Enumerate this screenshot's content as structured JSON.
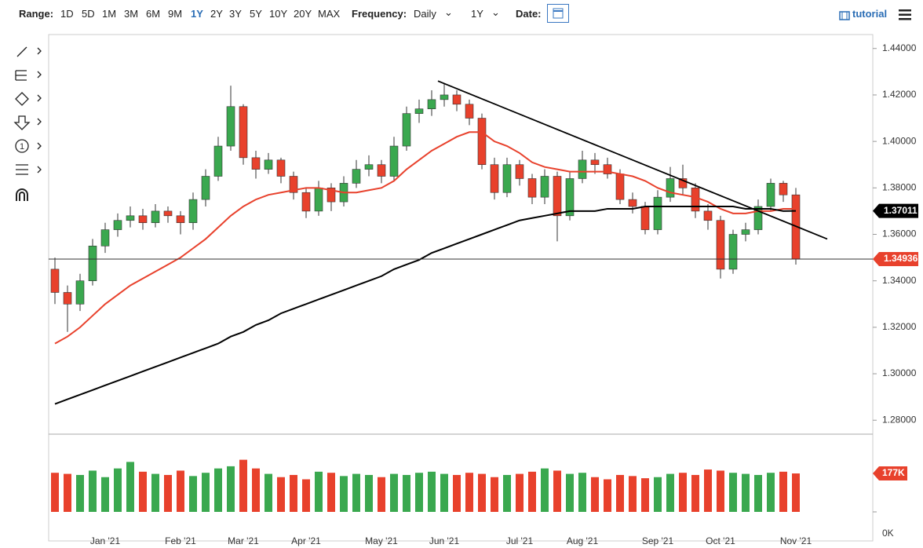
{
  "toolbar": {
    "range_label": "Range:",
    "ranges": [
      "1D",
      "5D",
      "1M",
      "3M",
      "6M",
      "9M",
      "1Y",
      "2Y",
      "3Y",
      "5Y",
      "10Y",
      "20Y",
      "MAX"
    ],
    "active_range": "1Y",
    "frequency_label": "Frequency:",
    "frequency": "Daily",
    "period": "1Y",
    "date_label": "Date:",
    "tutorial": "tutorial"
  },
  "chart_data": {
    "type": "candlestick",
    "categories": [
      null,
      null,
      null,
      null,
      "Jan '21",
      null,
      null,
      null,
      null,
      null,
      "Feb '21",
      null,
      null,
      null,
      null,
      "Mar '21",
      null,
      null,
      null,
      null,
      "Apr '21",
      null,
      null,
      null,
      null,
      null,
      "May '21",
      null,
      null,
      null,
      null,
      "Jun '21",
      null,
      null,
      null,
      null,
      null,
      "Jul '21",
      null,
      null,
      null,
      null,
      "Aug '21",
      null,
      null,
      null,
      null,
      null,
      "Sep '21",
      null,
      null,
      null,
      null,
      "Oct '21",
      null,
      null,
      null,
      null,
      null,
      "Nov '21"
    ],
    "open": [
      1.345,
      1.335,
      1.33,
      1.34,
      1.355,
      1.362,
      1.366,
      1.368,
      1.365,
      1.37,
      1.368,
      1.365,
      1.375,
      1.385,
      1.398,
      1.415,
      1.393,
      1.388,
      1.392,
      1.385,
      1.378,
      1.37,
      1.38,
      1.374,
      1.382,
      1.388,
      1.39,
      1.385,
      1.398,
      1.412,
      1.414,
      1.418,
      1.42,
      1.416,
      1.41,
      1.39,
      1.378,
      1.39,
      1.384,
      1.376,
      1.385,
      1.368,
      1.384,
      1.392,
      1.39,
      1.386,
      1.375,
      1.372,
      1.362,
      1.376,
      1.384,
      1.38,
      1.37,
      1.366,
      1.345,
      1.36,
      1.362,
      1.372,
      1.382,
      1.377
    ],
    "high": [
      1.35,
      1.338,
      1.343,
      1.358,
      1.365,
      1.369,
      1.372,
      1.371,
      1.373,
      1.372,
      1.37,
      1.378,
      1.388,
      1.402,
      1.424,
      1.416,
      1.396,
      1.395,
      1.393,
      1.387,
      1.38,
      1.383,
      1.382,
      1.385,
      1.392,
      1.394,
      1.392,
      1.402,
      1.415,
      1.418,
      1.422,
      1.425,
      1.422,
      1.418,
      1.412,
      1.393,
      1.393,
      1.392,
      1.386,
      1.388,
      1.387,
      1.387,
      1.396,
      1.395,
      1.393,
      1.388,
      1.378,
      1.374,
      1.379,
      1.389,
      1.39,
      1.382,
      1.373,
      1.368,
      1.362,
      1.365,
      1.375,
      1.384,
      1.383,
      1.38
    ],
    "low": [
      1.33,
      1.318,
      1.327,
      1.338,
      1.352,
      1.359,
      1.363,
      1.362,
      1.363,
      1.365,
      1.36,
      1.362,
      1.372,
      1.383,
      1.396,
      1.39,
      1.384,
      1.386,
      1.382,
      1.375,
      1.367,
      1.368,
      1.37,
      1.372,
      1.38,
      1.385,
      1.382,
      1.383,
      1.396,
      1.408,
      1.411,
      1.415,
      1.413,
      1.407,
      1.388,
      1.375,
      1.376,
      1.381,
      1.373,
      1.373,
      1.357,
      1.366,
      1.382,
      1.386,
      1.384,
      1.373,
      1.369,
      1.36,
      1.36,
      1.374,
      1.377,
      1.367,
      1.362,
      1.341,
      1.343,
      1.357,
      1.36,
      1.37,
      1.374,
      1.347
    ],
    "close": [
      1.335,
      1.33,
      1.34,
      1.355,
      1.362,
      1.366,
      1.368,
      1.365,
      1.37,
      1.368,
      1.365,
      1.375,
      1.385,
      1.398,
      1.415,
      1.393,
      1.388,
      1.392,
      1.385,
      1.378,
      1.37,
      1.38,
      1.374,
      1.382,
      1.388,
      1.39,
      1.385,
      1.398,
      1.412,
      1.414,
      1.418,
      1.42,
      1.416,
      1.41,
      1.39,
      1.378,
      1.39,
      1.384,
      1.376,
      1.385,
      1.368,
      1.384,
      1.392,
      1.39,
      1.386,
      1.375,
      1.372,
      1.362,
      1.376,
      1.384,
      1.38,
      1.37,
      1.366,
      1.345,
      1.36,
      1.362,
      1.372,
      1.382,
      1.377,
      1.34936
    ],
    "up_color": "#3aa84f",
    "down_color": "#e8412c",
    "moving_averages": [
      {
        "color": "#e8412c",
        "values": [
          1.313,
          1.316,
          1.32,
          1.325,
          1.33,
          1.334,
          1.338,
          1.341,
          1.344,
          1.347,
          1.35,
          1.354,
          1.358,
          1.363,
          1.368,
          1.372,
          1.375,
          1.377,
          1.378,
          1.379,
          1.38,
          1.38,
          1.379,
          1.378,
          1.378,
          1.379,
          1.38,
          1.383,
          1.388,
          1.392,
          1.396,
          1.399,
          1.402,
          1.404,
          1.404,
          1.4,
          1.398,
          1.395,
          1.391,
          1.389,
          1.388,
          1.387,
          1.387,
          1.387,
          1.387,
          1.386,
          1.385,
          1.383,
          1.38,
          1.378,
          1.377,
          1.376,
          1.374,
          1.371,
          1.369,
          1.369,
          1.37,
          1.37,
          1.371,
          1.371
        ]
      },
      {
        "color": "#000000",
        "values": [
          1.287,
          1.289,
          1.291,
          1.293,
          1.295,
          1.297,
          1.299,
          1.301,
          1.303,
          1.305,
          1.307,
          1.309,
          1.311,
          1.313,
          1.316,
          1.318,
          1.321,
          1.323,
          1.326,
          1.328,
          1.33,
          1.332,
          1.334,
          1.336,
          1.338,
          1.34,
          1.342,
          1.345,
          1.347,
          1.349,
          1.352,
          1.354,
          1.356,
          1.358,
          1.36,
          1.362,
          1.364,
          1.366,
          1.367,
          1.368,
          1.369,
          1.37,
          1.37,
          1.37,
          1.371,
          1.371,
          1.371,
          1.372,
          1.372,
          1.372,
          1.372,
          1.372,
          1.372,
          1.372,
          1.372,
          1.371,
          1.371,
          1.371,
          1.37,
          1.37011
        ]
      }
    ],
    "trendline": {
      "from": [
        30.5,
        1.426
      ],
      "to": [
        61.5,
        1.358
      ],
      "color": "#000000"
    },
    "ylim": [
      1.274,
      1.446
    ],
    "yticks": [
      {
        "value": 1.44,
        "label": "1.44000"
      },
      {
        "value": 1.42,
        "label": "1.42000"
      },
      {
        "value": 1.4,
        "label": "1.40000"
      },
      {
        "value": 1.38,
        "label": "1.38000"
      },
      {
        "value": 1.36,
        "label": "1.36000"
      },
      {
        "value": 1.34,
        "label": "1.34000"
      },
      {
        "value": 1.32,
        "label": "1.32000"
      },
      {
        "value": 1.3,
        "label": "1.30000"
      },
      {
        "value": 1.28,
        "label": "1.28000"
      }
    ],
    "volume": {
      "values": [
        180,
        175,
        170,
        190,
        160,
        200,
        230,
        185,
        175,
        170,
        190,
        165,
        180,
        200,
        210,
        240,
        200,
        175,
        160,
        170,
        150,
        185,
        180,
        165,
        175,
        170,
        160,
        175,
        170,
        180,
        185,
        175,
        170,
        180,
        175,
        160,
        170,
        175,
        185,
        200,
        190,
        175,
        180,
        160,
        150,
        170,
        165,
        155,
        160,
        175,
        180,
        170,
        195,
        190,
        180,
        175,
        170,
        180,
        185,
        177
      ],
      "last_label": "177K",
      "ylim": [
        0,
        300
      ],
      "yticks": [
        {
          "value": 0,
          "label": "0K"
        }
      ]
    }
  }
}
